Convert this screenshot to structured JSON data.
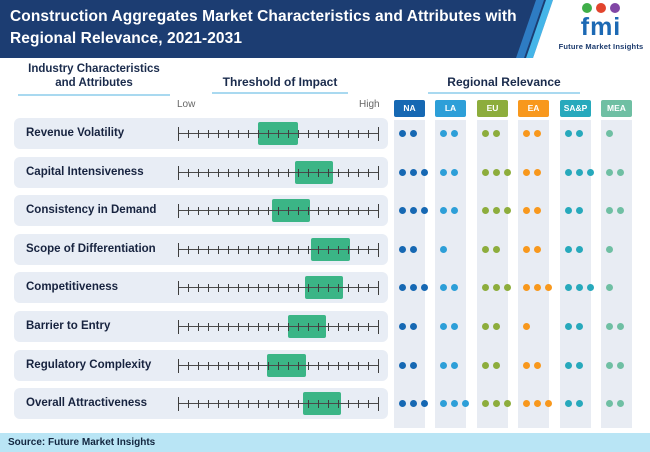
{
  "header": {
    "title": "Construction Aggregates Market Characteristics and Attributes with Regional Relevance, 2021-2031",
    "logo": {
      "brand": "fmi",
      "tagline": "Future Market Insights",
      "icon_colors": [
        "#3fae49",
        "#e2442d",
        "#8146a5"
      ],
      "brand_color": "#1c69b4"
    }
  },
  "table": {
    "col1_header": "Industry Characteristics and Attributes",
    "col2_header": "Threshold of Impact",
    "col3_header": "Regional Relevance",
    "scale": {
      "low": "Low",
      "high": "High",
      "tick_count": 21
    },
    "box_color": "#3bb586",
    "regions": [
      {
        "code": "NA",
        "color": "#1668b3"
      },
      {
        "code": "LA",
        "color": "#2d9fd8"
      },
      {
        "code": "EU",
        "color": "#8dad3c"
      },
      {
        "code": "EA",
        "color": "#f8981d"
      },
      {
        "code": "SA&P",
        "color": "#27a9bc"
      },
      {
        "code": "MEA",
        "color": "#6fbfa3"
      }
    ],
    "rows": [
      {
        "label": "Revenue Volatility",
        "impact_range_pct": [
          40,
          60
        ],
        "relevance_dots": [
          2,
          2,
          2,
          2,
          2,
          1
        ]
      },
      {
        "label": "Capital Intensiveness",
        "impact_range_pct": [
          58.5,
          77.5
        ],
        "relevance_dots": [
          3,
          2,
          3,
          2,
          3,
          2
        ]
      },
      {
        "label": "Consistency in Demand",
        "impact_range_pct": [
          47,
          66
        ],
        "relevance_dots": [
          3,
          2,
          3,
          2,
          2,
          2
        ]
      },
      {
        "label": "Scope of Differentiation",
        "impact_range_pct": [
          66.5,
          86
        ],
        "relevance_dots": [
          2,
          1,
          2,
          2,
          2,
          1
        ]
      },
      {
        "label": "Competitiveness",
        "impact_range_pct": [
          63.5,
          82.5
        ],
        "relevance_dots": [
          3,
          2,
          3,
          3,
          3,
          1
        ]
      },
      {
        "label": "Barrier to Entry",
        "impact_range_pct": [
          55,
          74
        ],
        "relevance_dots": [
          2,
          2,
          2,
          1,
          2,
          2
        ]
      },
      {
        "label": "Regulatory Complexity",
        "impact_range_pct": [
          44.5,
          64
        ],
        "relevance_dots": [
          2,
          2,
          2,
          2,
          2,
          2
        ]
      },
      {
        "label": "Overall Attractiveness",
        "impact_range_pct": [
          62.5,
          81.5
        ],
        "relevance_dots": [
          3,
          3,
          3,
          3,
          2,
          2
        ]
      }
    ]
  },
  "footer": {
    "source": "Source: Future Market Insights"
  },
  "chart_data": {
    "type": "table",
    "title": "Construction Aggregates Market Characteristics and Attributes with Regional Relevance, 2021-2031",
    "columns": [
      "Industry Characteristics and Attributes",
      "Threshold of Impact (box position, % of Low-High scale)",
      "Regional Relevance (dot count 1-3 per region)"
    ],
    "regions": [
      "NA",
      "LA",
      "EU",
      "EA",
      "SA&P",
      "MEA"
    ],
    "impact_scale": {
      "min_label": "Low",
      "max_label": "High",
      "ticks": 21
    },
    "rows": [
      {
        "attribute": "Revenue Volatility",
        "impact_low_pct": 40,
        "impact_high_pct": 60,
        "relevance": {
          "NA": 2,
          "LA": 2,
          "EU": 2,
          "EA": 2,
          "SA&P": 2,
          "MEA": 1
        }
      },
      {
        "attribute": "Capital Intensiveness",
        "impact_low_pct": 58.5,
        "impact_high_pct": 77.5,
        "relevance": {
          "NA": 3,
          "LA": 2,
          "EU": 3,
          "EA": 2,
          "SA&P": 3,
          "MEA": 2
        }
      },
      {
        "attribute": "Consistency in Demand",
        "impact_low_pct": 47,
        "impact_high_pct": 66,
        "relevance": {
          "NA": 3,
          "LA": 2,
          "EU": 3,
          "EA": 2,
          "SA&P": 2,
          "MEA": 2
        }
      },
      {
        "attribute": "Scope of Differentiation",
        "impact_low_pct": 66.5,
        "impact_high_pct": 86,
        "relevance": {
          "NA": 2,
          "LA": 1,
          "EU": 2,
          "EA": 2,
          "SA&P": 2,
          "MEA": 1
        }
      },
      {
        "attribute": "Competitiveness",
        "impact_low_pct": 63.5,
        "impact_high_pct": 82.5,
        "relevance": {
          "NA": 3,
          "LA": 2,
          "EU": 3,
          "EA": 3,
          "SA&P": 3,
          "MEA": 1
        }
      },
      {
        "attribute": "Barrier to Entry",
        "impact_low_pct": 55,
        "impact_high_pct": 74,
        "relevance": {
          "NA": 2,
          "LA": 2,
          "EU": 2,
          "EA": 1,
          "SA&P": 2,
          "MEA": 2
        }
      },
      {
        "attribute": "Regulatory Complexity",
        "impact_low_pct": 44.5,
        "impact_high_pct": 64,
        "relevance": {
          "NA": 2,
          "LA": 2,
          "EU": 2,
          "EA": 2,
          "SA&P": 2,
          "MEA": 2
        }
      },
      {
        "attribute": "Overall Attractiveness",
        "impact_low_pct": 62.5,
        "impact_high_pct": 81.5,
        "relevance": {
          "NA": 3,
          "LA": 3,
          "EU": 3,
          "EA": 3,
          "SA&P": 2,
          "MEA": 2
        }
      }
    ]
  }
}
